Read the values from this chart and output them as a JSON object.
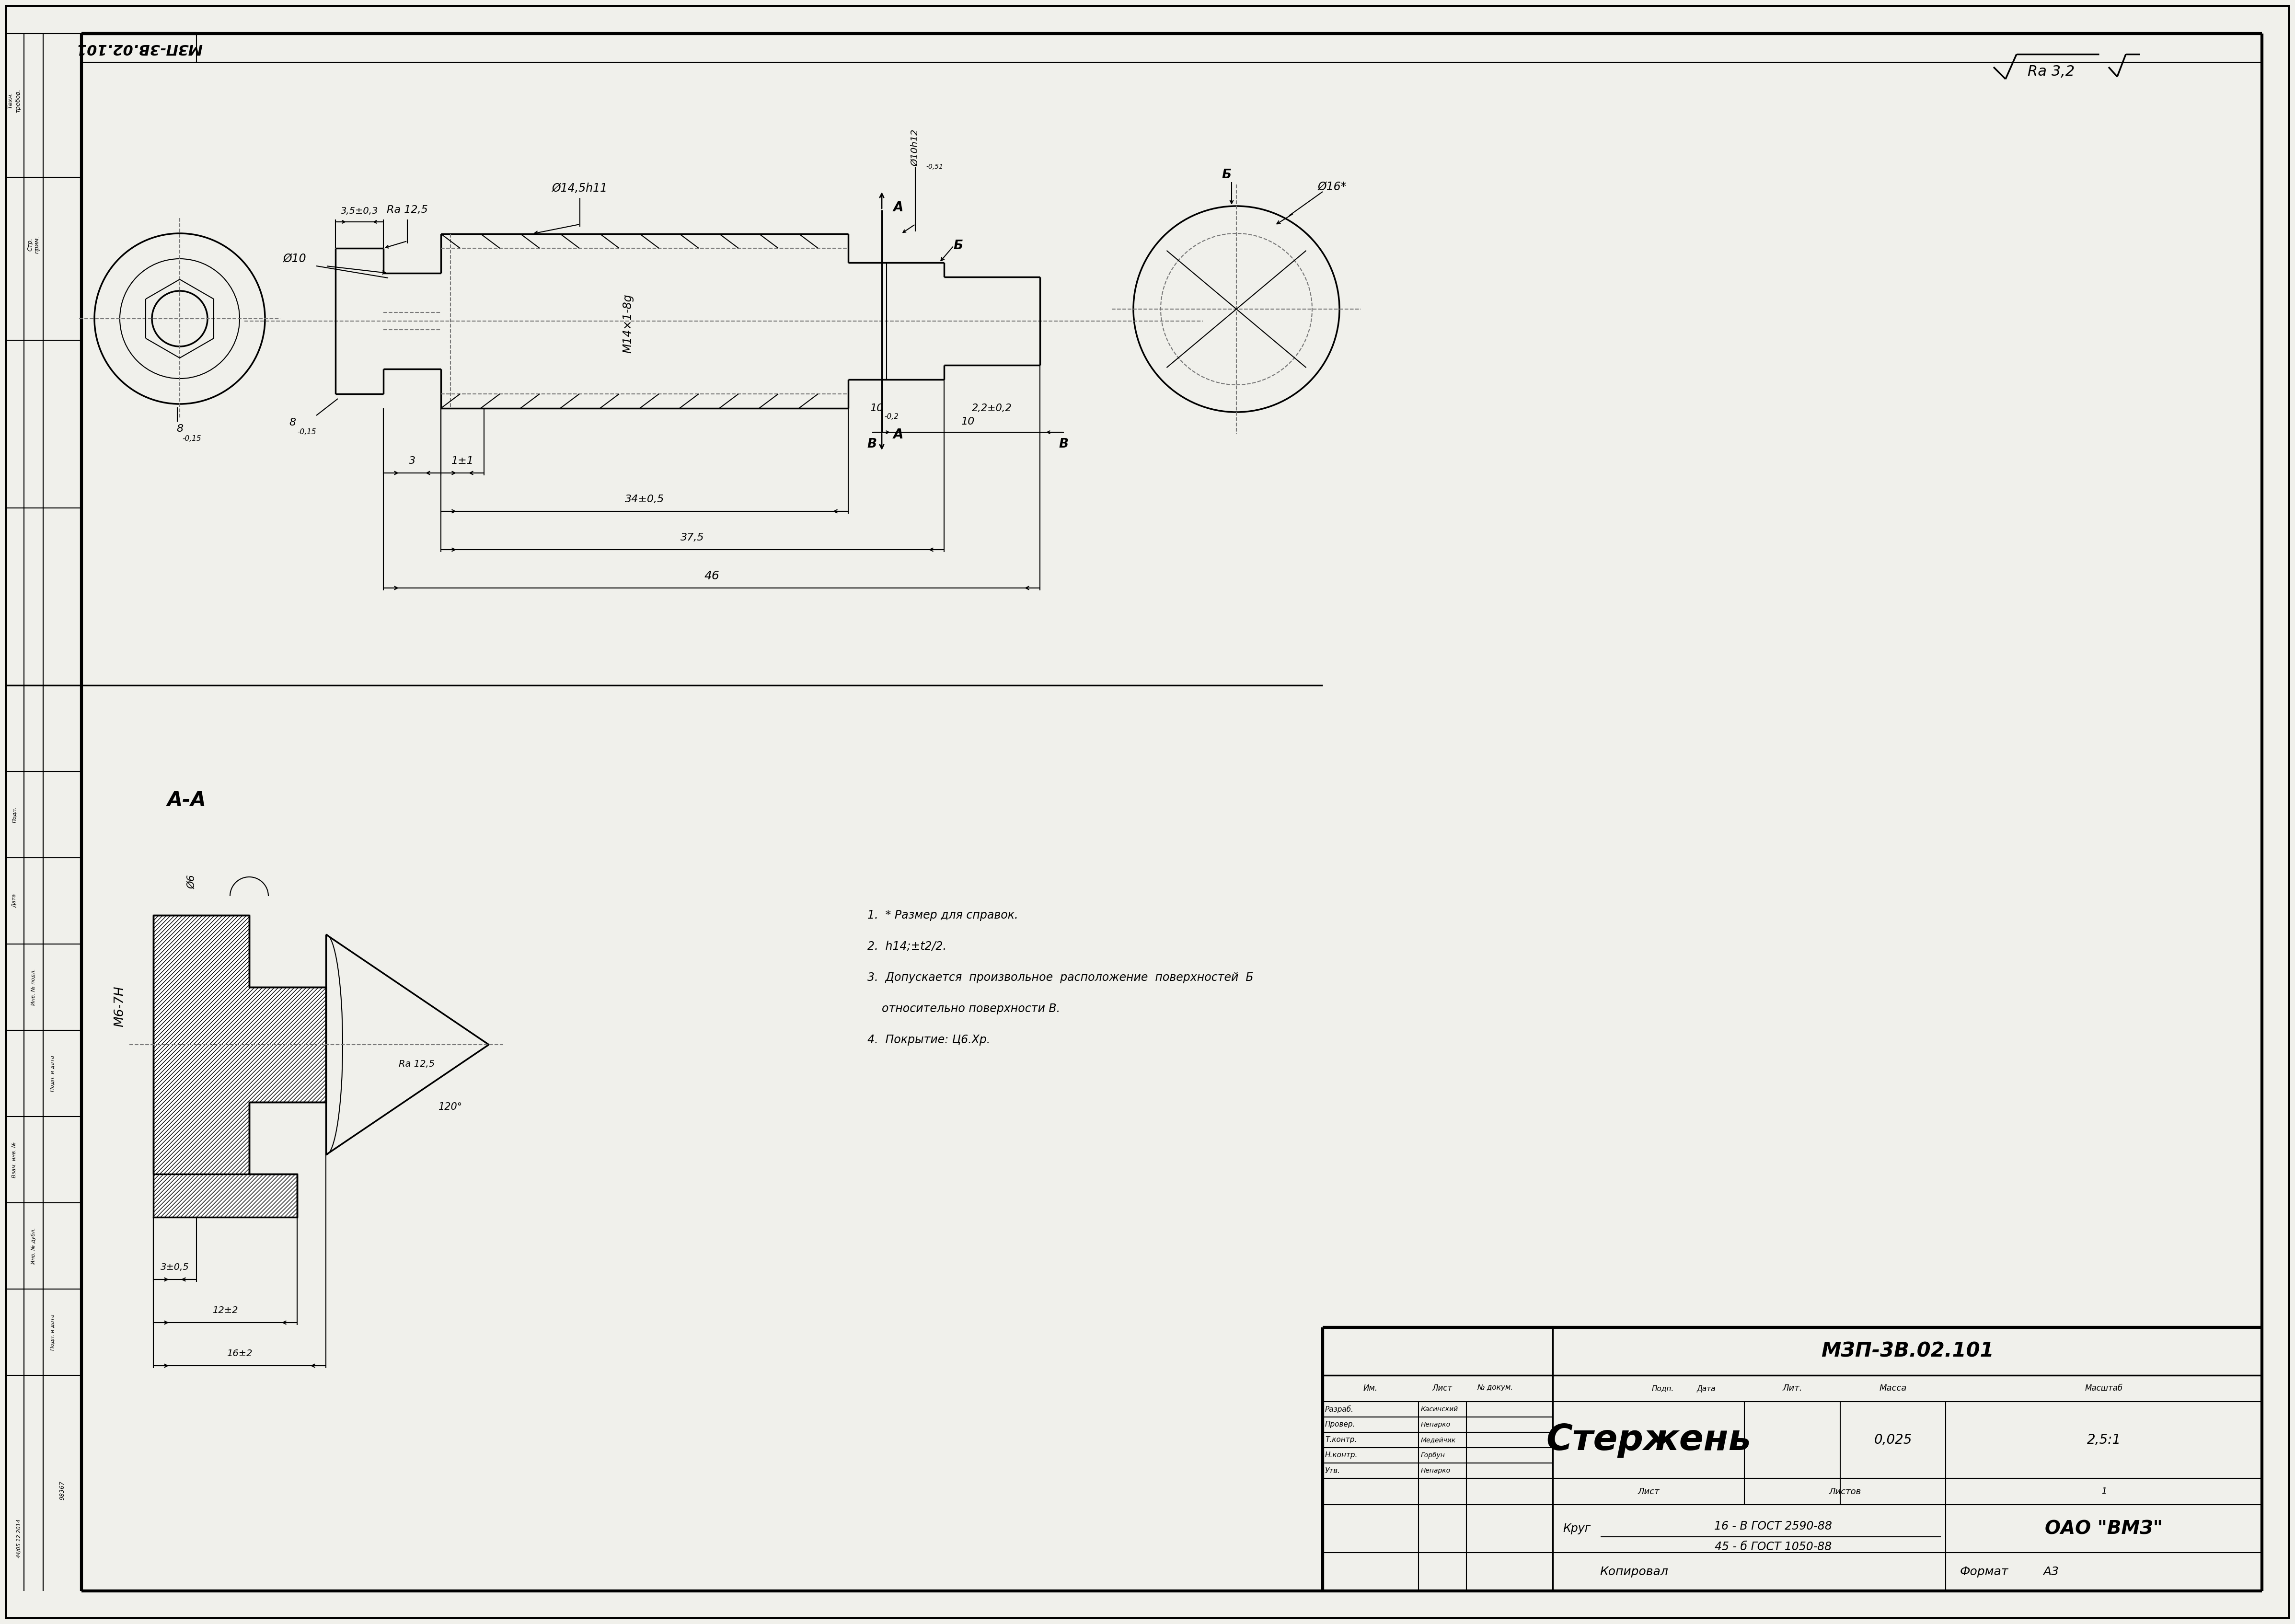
{
  "bg_color": "#f0f0eb",
  "line_color": "#000000",
  "title_part": "МЗП-3В.02.101",
  "part_name": "Стержень",
  "company": "ОАО \"ВМЗ\"",
  "mass": "0,025",
  "scale": "2,5:1",
  "material_top": "16 - В ГОСТ 2590-88",
  "material_bot": "45 - б ГОСТ 1050-88",
  "mat_label": "Круг",
  "notes": [
    "1.  * Размер для справок.",
    "2.  h14;±t2/2.",
    "3.  Допускается  произвольное  расположение  поверхностей  Б",
    "    относительно поверхности В.",
    "4.  Покрытие: Ц6.Хр."
  ],
  "roughness_top": "Ra 3,2",
  "format_label": "Формат",
  "format_val": "А3",
  "copy_label": "Копировал",
  "sheet_label": "Лист",
  "sheets_label": "Листов",
  "sheets_val": "1",
  "lit_label": "Лит.",
  "massa_label": "Масса",
  "masshtab_label": "Масштаб",
  "sigs": [
    "Разраб.",
    "Провер.",
    "Т.контр.",
    "Н.контр.",
    "Утв."
  ],
  "names": [
    "Касинский",
    "Непарко",
    "Медейчик",
    "Горбун",
    "Непарко"
  ],
  "sig_headers": [
    "Им.",
    "Лист",
    "№ докум.",
    "Подп.",
    "Дата"
  ]
}
